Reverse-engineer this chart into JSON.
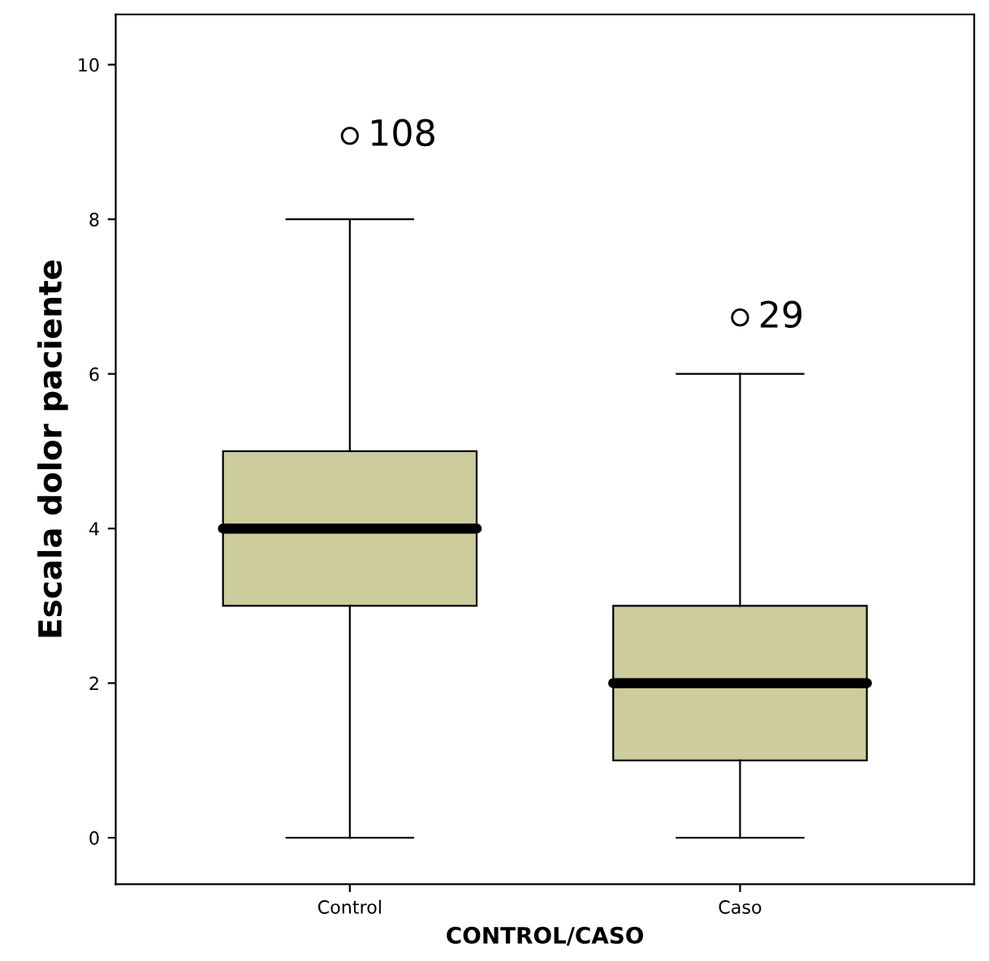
{
  "chart_data": {
    "type": "box",
    "xlabel": "CONTROL/CASO",
    "ylabel": "Escala dolor paciente",
    "categories": [
      "Control",
      "Caso"
    ],
    "boxes": [
      {
        "low": 0,
        "q1": 3,
        "median": 4,
        "q3": 5,
        "high": 8,
        "outliers": [
          9.08
        ]
      },
      {
        "low": 0,
        "q1": 1,
        "median": 2,
        "q3": 3,
        "high": 6,
        "outliers": [
          6.73
        ]
      }
    ],
    "color": "#cccc9c",
    "ylim": [
      -0.6,
      10.65
    ],
    "yticks": [
      0,
      2,
      4,
      6,
      8,
      10
    ],
    "grid": false,
    "annotations": [
      "108",
      "29"
    ]
  }
}
